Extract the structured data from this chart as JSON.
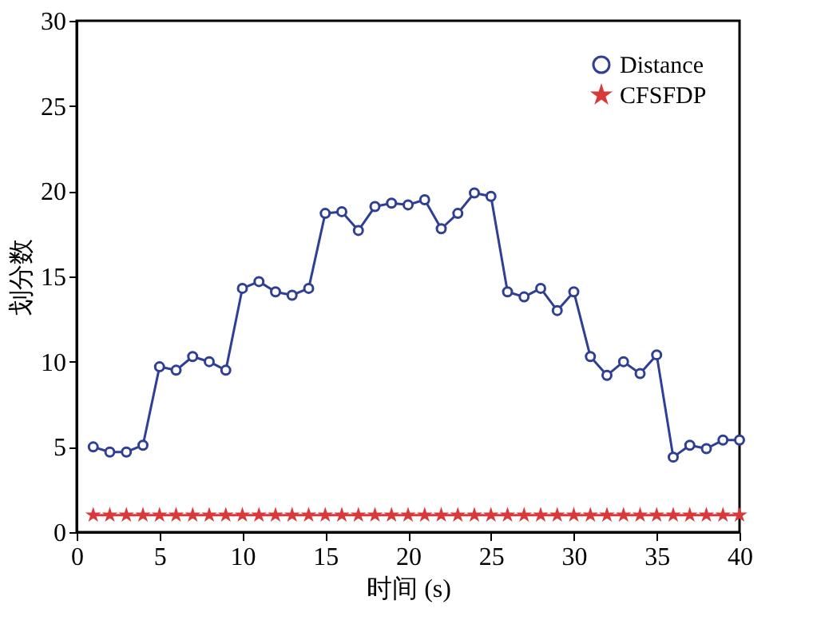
{
  "chart_data": {
    "type": "line",
    "xlabel": "时间 (s)",
    "ylabel": "划分数",
    "x": [
      1,
      2,
      3,
      4,
      5,
      6,
      7,
      8,
      9,
      10,
      11,
      12,
      13,
      14,
      15,
      16,
      17,
      18,
      19,
      20,
      21,
      22,
      23,
      24,
      25,
      26,
      27,
      28,
      29,
      30,
      31,
      32,
      33,
      34,
      35,
      36,
      37,
      38,
      39,
      40
    ],
    "series": [
      {
        "name": "Distance",
        "color": "#2e3f94",
        "marker": "circle",
        "values": [
          5.0,
          4.7,
          4.7,
          5.1,
          9.7,
          9.5,
          10.3,
          10.0,
          9.5,
          14.3,
          14.7,
          14.1,
          13.9,
          14.3,
          18.7,
          18.8,
          17.7,
          19.1,
          19.3,
          19.2,
          19.5,
          17.8,
          18.7,
          19.9,
          19.7,
          14.1,
          13.8,
          14.3,
          13.0,
          14.1,
          10.3,
          9.2,
          10.0,
          9.3,
          10.4,
          4.4,
          5.1,
          4.9,
          5.4,
          5.4
        ]
      },
      {
        "name": "CFSFDP",
        "color": "#d9393b",
        "marker": "star",
        "values": [
          1,
          1,
          1,
          1,
          1,
          1,
          1,
          1,
          1,
          1,
          1,
          1,
          1,
          1,
          1,
          1,
          1,
          1,
          1,
          1,
          1,
          1,
          1,
          1,
          1,
          1,
          1,
          1,
          1,
          1,
          1,
          1,
          1,
          1,
          1,
          1,
          1,
          1,
          1,
          1
        ]
      }
    ],
    "xlim": [
      0,
      40
    ],
    "xticks": [
      0,
      5,
      10,
      15,
      20,
      25,
      30,
      35,
      40
    ],
    "ylim": [
      0,
      30
    ],
    "yticks": [
      0,
      5,
      10,
      15,
      20,
      25,
      30
    ],
    "grid": false,
    "legend": "top right",
    "line_style": "solid"
  }
}
